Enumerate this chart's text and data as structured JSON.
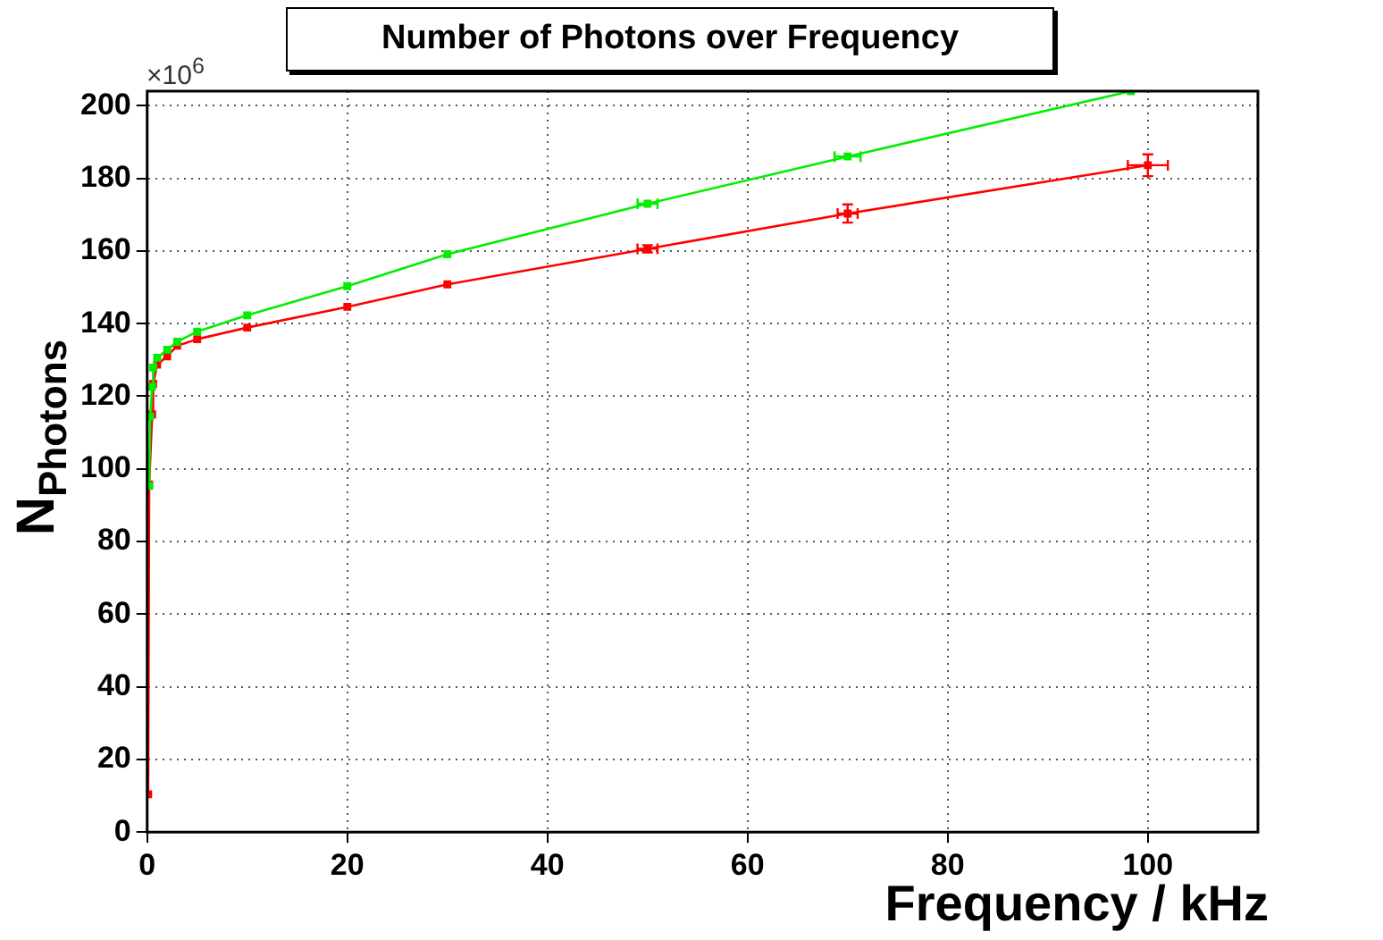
{
  "chart_data": {
    "type": "line",
    "title": "Number of Photons over Frequency",
    "xlabel": "Frequency / kHz",
    "ylabel": "N$_{Photons}$",
    "annotations": [
      "×10$^{6}$"
    ],
    "xlim": [
      0,
      111
    ],
    "ylim": [
      0,
      204
    ],
    "xticks": [
      0,
      20,
      40,
      60,
      80,
      100
    ],
    "yticks": [
      0,
      20,
      40,
      60,
      80,
      100,
      120,
      140,
      160,
      180,
      200
    ],
    "grid": true,
    "legend": false,
    "marker": "square",
    "line_style": "solid",
    "series": [
      {
        "color": "#ff0000",
        "x": [
          0.1,
          0.2,
          0.5,
          0.6,
          1,
          2,
          3,
          5,
          10,
          20,
          30,
          50,
          70,
          100
        ],
        "values": [
          10.4,
          95.7,
          115,
          123.4,
          128.7,
          131,
          133.9,
          135.7,
          138.9,
          144.6,
          150.8,
          160.6,
          170.3,
          183.6
        ],
        "errors": [
          null,
          null,
          null,
          null,
          null,
          null,
          null,
          null,
          null,
          null,
          null,
          1,
          2.5,
          3
        ],
        "xerrors": [
          null,
          null,
          null,
          null,
          null,
          null,
          null,
          null,
          null,
          null,
          null,
          1,
          1,
          2
        ]
      },
      {
        "color": "#00ee00",
        "x": [
          0.2,
          0.3,
          0.5,
          0.6,
          1,
          2,
          3,
          5,
          10,
          20,
          30,
          50,
          70,
          98.3
        ],
        "values": [
          95.3,
          114.4,
          122.6,
          127.9,
          130.6,
          132.8,
          135,
          137.8,
          142.3,
          150.3,
          159.1,
          173,
          186,
          204
        ],
        "xerrors": [
          null,
          null,
          null,
          null,
          null,
          null,
          null,
          null,
          null,
          null,
          null,
          1,
          1.3,
          null
        ]
      }
    ]
  }
}
